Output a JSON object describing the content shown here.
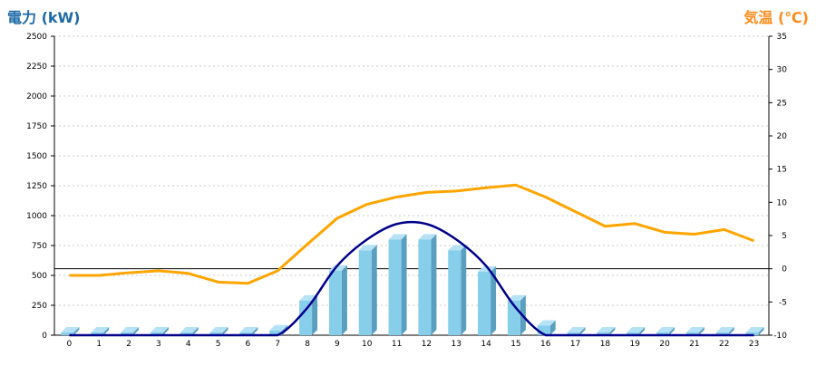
{
  "chart_data": {
    "type": "bar",
    "left_axis_title": "電力 (kW)",
    "right_axis_title": "気温 (℃)",
    "categories": [
      "0",
      "1",
      "2",
      "3",
      "4",
      "5",
      "6",
      "7",
      "8",
      "9",
      "10",
      "11",
      "12",
      "13",
      "14",
      "15",
      "16",
      "17",
      "18",
      "19",
      "20",
      "21",
      "22",
      "23"
    ],
    "y_left": {
      "min": 0,
      "max": 2500,
      "ticks": [
        "0",
        "250",
        "500",
        "750",
        "1000",
        "1250",
        "1500",
        "1750",
        "2000",
        "2250",
        "2500"
      ]
    },
    "y_right": {
      "min": -10,
      "max": 35,
      "ticks": [
        "-10",
        "-5",
        "0",
        "5",
        "10",
        "15",
        "20",
        "25",
        "30",
        "35"
      ]
    },
    "grid": true,
    "series": [
      {
        "kind": "bar",
        "axis": "left",
        "values": [
          0,
          0,
          0,
          0,
          0,
          0,
          0,
          40,
          290,
          540,
          710,
          800,
          800,
          710,
          530,
          290,
          80,
          0,
          0,
          0,
          0,
          0,
          0,
          0
        ]
      },
      {
        "kind": "line",
        "axis": "left",
        "values": [
          0,
          0,
          0,
          0,
          0,
          0,
          0,
          0,
          230,
          580,
          800,
          930,
          930,
          800,
          580,
          230,
          0,
          0,
          0,
          0,
          0,
          0,
          0,
          0
        ]
      },
      {
        "kind": "line",
        "axis": "right",
        "values": [
          -1.0,
          -1.0,
          -0.6,
          -0.3,
          -0.7,
          -2.0,
          -2.2,
          -0.3,
          3.7,
          7.6,
          9.7,
          10.8,
          11.5,
          11.7,
          12.2,
          12.6,
          10.8,
          8.6,
          6.4,
          6.8,
          5.5,
          5.2,
          5.9,
          4.2
        ]
      }
    ],
    "colors": {
      "bar_front": "#87ceeb",
      "bar_side": "#5a9fc0",
      "bar_top": "#b6e2f5",
      "power_line": "#00008b",
      "temperature_line": "#ffa500",
      "left_title": "#1e6aa8",
      "right_title": "#ff8c1a",
      "grid": "#c8c8c8",
      "zero_line": "#000000"
    }
  }
}
